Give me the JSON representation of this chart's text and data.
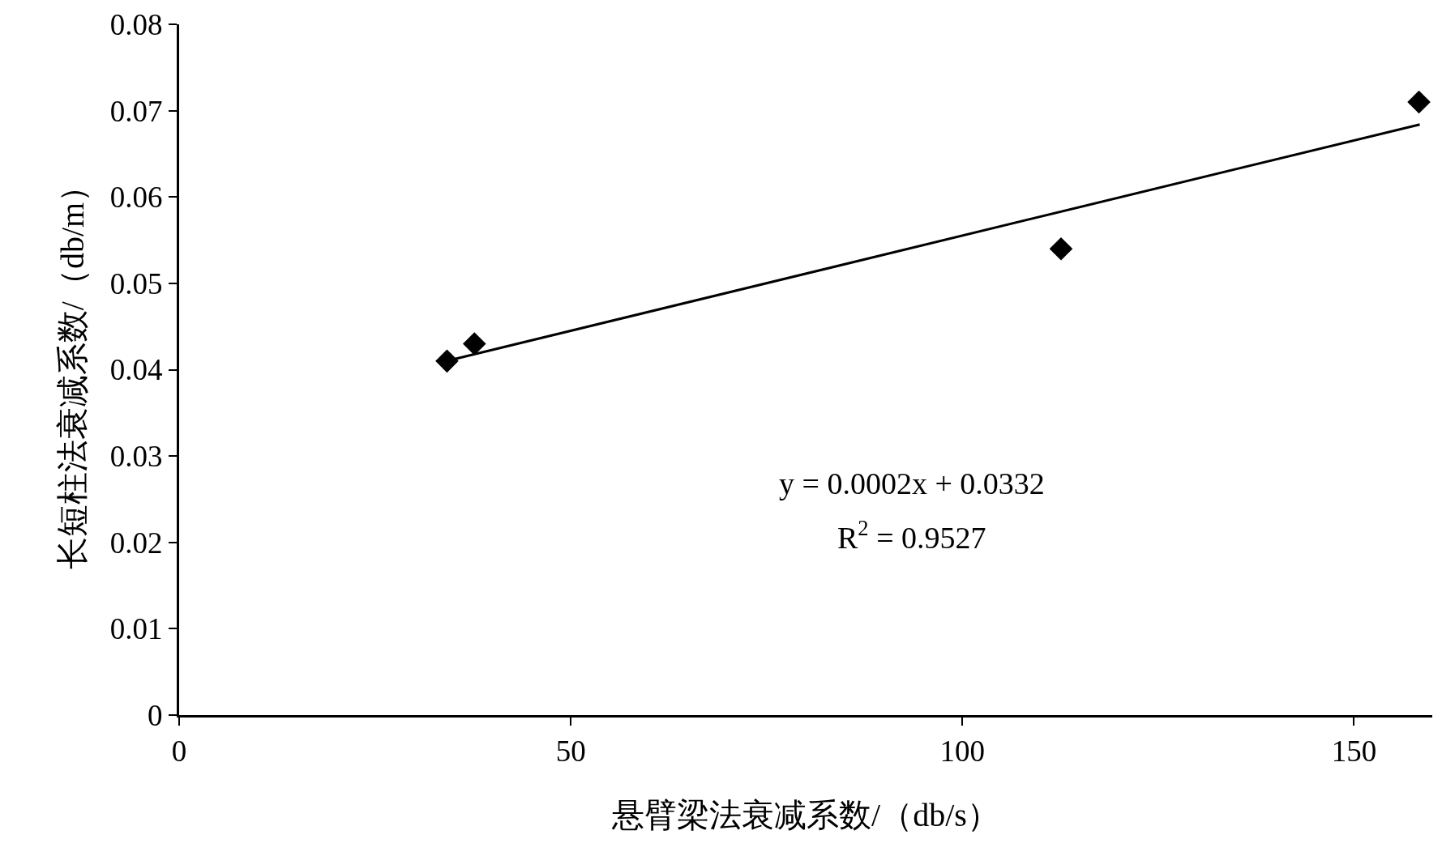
{
  "chart_data": {
    "type": "scatter",
    "xlabel": "悬臂梁法衰减系数/（db/s）",
    "ylabel": "长短柱法衰减系数/（db/m）",
    "xlim": [
      0,
      160
    ],
    "ylim": [
      0,
      0.08
    ],
    "xticks": [
      0,
      50,
      100,
      150
    ],
    "yticks": [
      0,
      0.01,
      0.02,
      0.03,
      0.04,
      0.05,
      0.06,
      0.07,
      0.08
    ],
    "grid": false,
    "marker": "diamond",
    "series": [
      {
        "color": "#000000",
        "x": [
          34.2,
          37.7,
          112.6,
          158.3
        ],
        "values": [
          0.041,
          0.043,
          0.054,
          0.071
        ]
      },
      {
        "type": "line",
        "marker": "none",
        "color": "#000000",
        "x": [
          35,
          158.4
        ],
        "values": [
          0.0412,
          0.0684
        ]
      }
    ],
    "annotations": [
      "y = 0.0002x + 0.0332",
      "R$^{2}$ = 0.9527"
    ]
  }
}
